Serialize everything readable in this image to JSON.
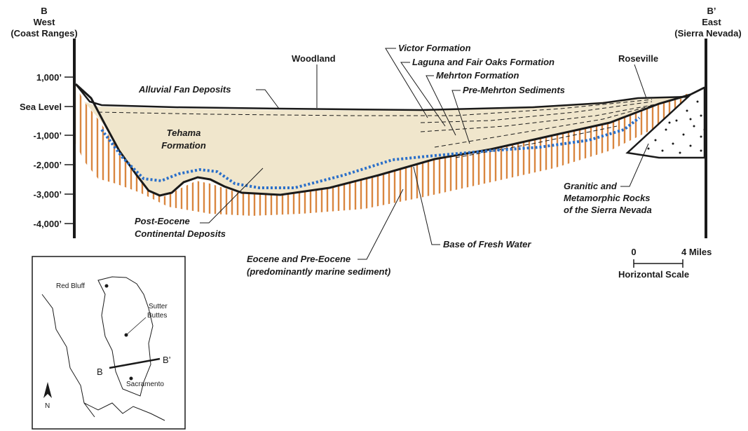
{
  "header": {
    "west": {
      "letter": "B",
      "word": "West",
      "sub": "(Coast Ranges)"
    },
    "east": {
      "letter": "B’",
      "word": "East",
      "sub": "(Sierra Nevada)"
    }
  },
  "elevation_ticks": [
    "1,000’",
    "Sea Level",
    "-1,000’",
    "-2,000’",
    "-3,000’",
    "-4,000’"
  ],
  "places": {
    "woodland": "Woodland",
    "roseville": "Roseville"
  },
  "labels": {
    "alluvial_fan": "Alluvial Fan Deposits",
    "victor": "Victor Formation",
    "laguna": "Laguna and Fair Oaks Formation",
    "mehrton": "Mehrton Formation",
    "pre_mehrton": "Pre-Mehrton Sediments",
    "tehama_1": "Tehama",
    "tehama_2": "Formation",
    "post_eocene_1": "Post-Eocene",
    "post_eocene_2": "Continental Deposits",
    "eocene_1": "Eocene and Pre-Eocene",
    "eocene_2": "(predominantly marine sediment)",
    "base_fresh": "Base of Fresh Water",
    "granitic_1": "Granitic and",
    "granitic_2": "Metamorphic Rocks",
    "granitic_3": "of the Sierra Nevada"
  },
  "scale": {
    "zero": "0",
    "four": "4 Miles",
    "caption": "Horizontal Scale"
  },
  "inset": {
    "red_bluff": "Red Bluff",
    "sutter_1": "Sutter",
    "sutter_2": "Buttes",
    "b": "B",
    "b_prime": "B’",
    "sacramento": "Sacramento",
    "north": "N"
  },
  "colors": {
    "fill": "#f0e6cc",
    "hatch": "#d9863f",
    "fresh_water": "#2a6fc9",
    "ink": "#1a1a1a"
  }
}
